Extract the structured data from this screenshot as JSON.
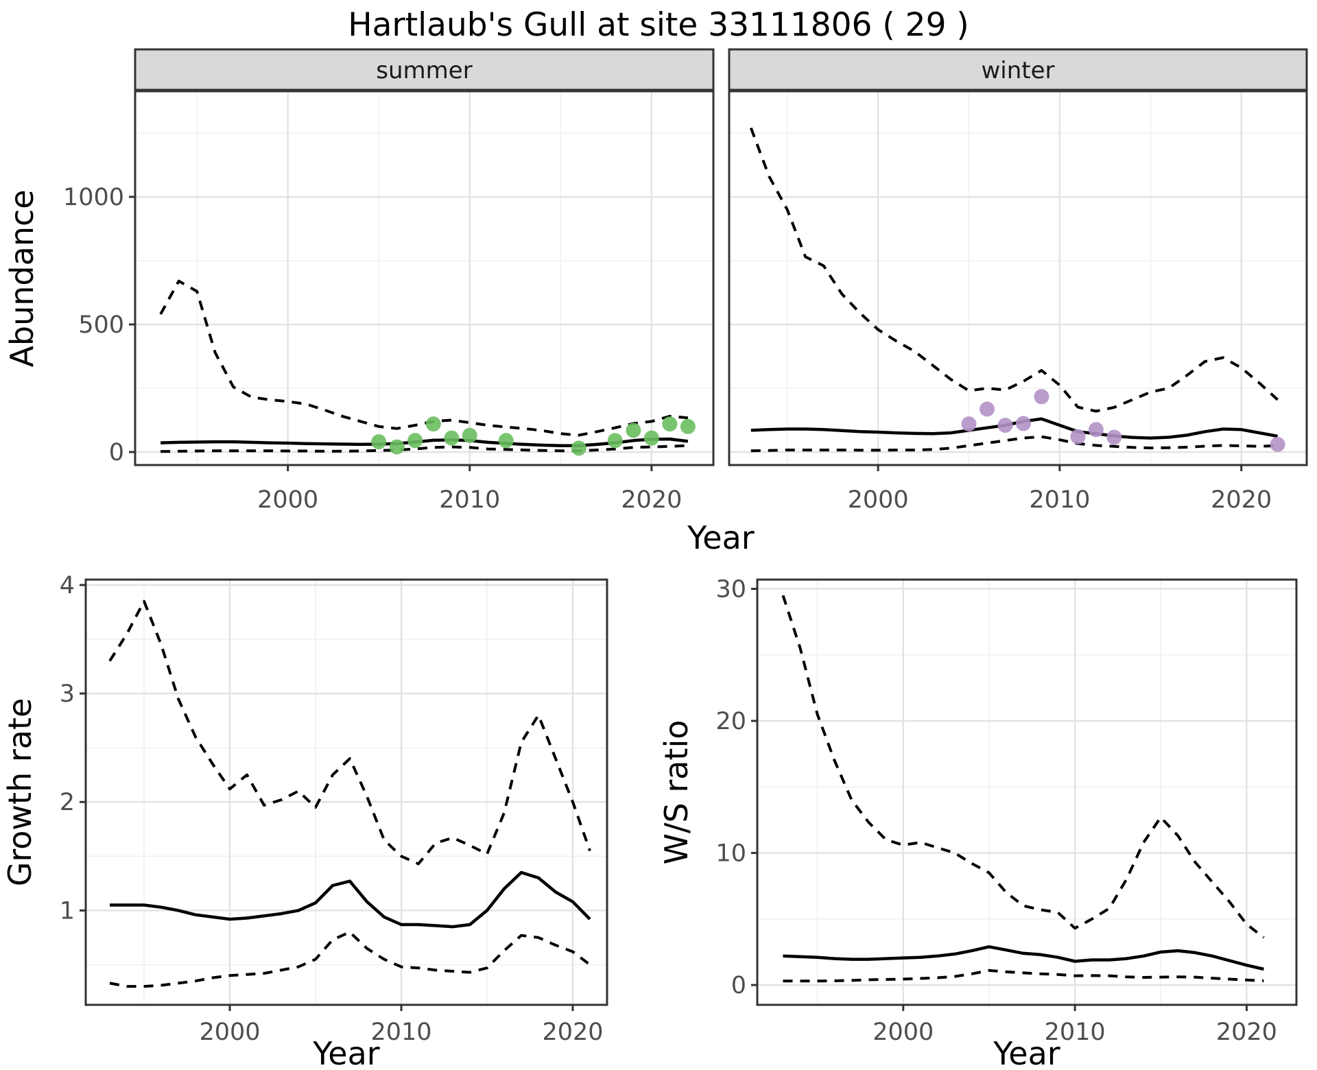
{
  "chart_data": {
    "type": "line",
    "title": "Hartlaub's Gull at site 33111806 ( 29 )",
    "layout_hints": {
      "grid": "on",
      "legend": "none",
      "facet_strips": [
        "summer",
        "winter"
      ],
      "line_styles": {
        "median": "solid black",
        "credible_interval": "dashed black"
      }
    },
    "styles": {
      "summer_point_color": "#6ABE5F",
      "winter_point_color": "#B292C7",
      "strip_fill": "#D9D9D9",
      "strip_border": "#333333",
      "panel_border": "#333333",
      "grid_major": "#E2E2E2",
      "grid_minor": "#F0F0F0",
      "tick_color": "#333333",
      "line_color": "#000000"
    },
    "panels": [
      {
        "key": "abundance_summer",
        "facet": "summer",
        "ylabel": "Abundance",
        "xlabel": "Year",
        "xlim": [
          1991.6,
          2023.4
        ],
        "ylim": [
          -51,
          1414
        ],
        "xticks": [
          2000,
          2010,
          2020
        ],
        "xminor": [
          1995,
          2005,
          2015
        ],
        "yticks": [
          0,
          500,
          1000
        ],
        "yminor": [
          250,
          750,
          1250
        ],
        "x": [
          1993,
          1994,
          1995,
          1996,
          1997,
          1998,
          1999,
          2000,
          2001,
          2002,
          2003,
          2004,
          2005,
          2006,
          2007,
          2008,
          2009,
          2010,
          2011,
          2012,
          2013,
          2014,
          2015,
          2016,
          2017,
          2018,
          2019,
          2020,
          2021,
          2022
        ],
        "upper": [
          540,
          670,
          630,
          390,
          255,
          215,
          205,
          198,
          188,
          165,
          140,
          120,
          100,
          92,
          105,
          120,
          125,
          115,
          105,
          98,
          92,
          84,
          72,
          66,
          80,
          95,
          112,
          120,
          140,
          134
        ],
        "median": [
          36,
          38,
          39,
          40,
          40,
          38,
          36,
          35,
          33,
          32,
          31,
          30,
          31,
          33,
          39,
          46,
          48,
          45,
          38,
          34,
          30,
          27,
          25,
          25,
          30,
          36,
          45,
          50,
          51,
          42
        ],
        "lower": [
          2,
          3,
          4,
          5,
          5,
          5,
          5,
          4,
          4,
          3,
          3,
          4,
          6,
          8,
          12,
          18,
          20,
          18,
          12,
          10,
          8,
          6,
          5,
          5,
          8,
          12,
          18,
          20,
          22,
          25
        ],
        "points": [
          [
            2005,
            40
          ],
          [
            2006,
            20
          ],
          [
            2007,
            45
          ],
          [
            2008,
            110
          ],
          [
            2009,
            55
          ],
          [
            2010,
            65
          ],
          [
            2012,
            45
          ],
          [
            2016,
            15
          ],
          [
            2018,
            45
          ],
          [
            2019,
            85
          ],
          [
            2020,
            55
          ],
          [
            2021,
            110
          ],
          [
            2022,
            100
          ]
        ],
        "point_color": "#6ABE5F"
      },
      {
        "key": "abundance_winter",
        "facet": "winter",
        "ylabel": "Abundance",
        "xlabel": "Year",
        "xlim": [
          1991.8,
          2023.6
        ],
        "ylim": [
          -51,
          1414
        ],
        "xticks": [
          2000,
          2010,
          2020
        ],
        "xminor": [
          1995,
          2005,
          2015
        ],
        "yticks": [
          0,
          500,
          1000
        ],
        "yminor": [
          250,
          750,
          1250
        ],
        "x": [
          1993,
          1994,
          1995,
          1996,
          1997,
          1998,
          1999,
          2000,
          2001,
          2002,
          2003,
          2004,
          2005,
          2006,
          2007,
          2008,
          2009,
          2010,
          2011,
          2012,
          2013,
          2014,
          2015,
          2016,
          2017,
          2018,
          2019,
          2020,
          2021,
          2022
        ],
        "upper": [
          1270,
          1080,
          950,
          765,
          730,
          620,
          545,
          480,
          435,
          395,
          340,
          285,
          240,
          250,
          243,
          277,
          320,
          262,
          176,
          160,
          175,
          205,
          235,
          250,
          300,
          355,
          370,
          330,
          270,
          205
        ],
        "median": [
          85,
          88,
          90,
          90,
          88,
          84,
          80,
          78,
          75,
          73,
          72,
          75,
          85,
          95,
          105,
          120,
          130,
          105,
          80,
          72,
          63,
          57,
          55,
          58,
          66,
          80,
          90,
          88,
          75,
          62
        ],
        "lower": [
          5,
          6,
          8,
          8,
          8,
          8,
          7,
          7,
          8,
          8,
          10,
          15,
          25,
          35,
          45,
          55,
          60,
          48,
          33,
          26,
          22,
          18,
          16,
          17,
          19,
          23,
          26,
          24,
          22,
          25
        ],
        "points": [
          [
            2005,
            110
          ],
          [
            2006,
            168
          ],
          [
            2007,
            105
          ],
          [
            2008,
            112
          ],
          [
            2009,
            217
          ],
          [
            2011,
            60
          ],
          [
            2012,
            88
          ],
          [
            2013,
            58
          ],
          [
            2022,
            30
          ]
        ],
        "point_color": "#B292C7"
      },
      {
        "key": "growth",
        "facet": null,
        "ylabel": "Growth rate",
        "xlabel": "Year",
        "xlim": [
          1991.6,
          2022.0
        ],
        "ylim": [
          0.13,
          4.05
        ],
        "xticks": [
          2000,
          2010,
          2020
        ],
        "xminor": [
          1995,
          2005,
          2015
        ],
        "yticks": [
          1,
          2,
          3,
          4
        ],
        "yminor": [
          0.5,
          1.5,
          2.5,
          3.5
        ],
        "x": [
          1993,
          1994,
          1995,
          1996,
          1997,
          1998,
          1999,
          2000,
          2001,
          2002,
          2003,
          2004,
          2005,
          2006,
          2007,
          2008,
          2009,
          2010,
          2011,
          2012,
          2013,
          2014,
          2015,
          2016,
          2017,
          2018,
          2019,
          2020,
          2021
        ],
        "upper": [
          3.3,
          3.55,
          3.85,
          3.45,
          2.95,
          2.6,
          2.35,
          2.12,
          2.25,
          1.97,
          2.02,
          2.1,
          1.95,
          2.25,
          2.4,
          2.05,
          1.65,
          1.5,
          1.43,
          1.62,
          1.67,
          1.6,
          1.52,
          1.9,
          2.55,
          2.8,
          2.4,
          2.0,
          1.55
        ],
        "median": [
          1.05,
          1.05,
          1.05,
          1.03,
          1.0,
          0.96,
          0.94,
          0.92,
          0.93,
          0.95,
          0.97,
          1.0,
          1.07,
          1.23,
          1.27,
          1.08,
          0.94,
          0.87,
          0.87,
          0.86,
          0.85,
          0.87,
          1.0,
          1.2,
          1.35,
          1.3,
          1.17,
          1.08,
          0.92
        ],
        "lower": [
          0.33,
          0.3,
          0.3,
          0.31,
          0.33,
          0.35,
          0.38,
          0.4,
          0.41,
          0.42,
          0.45,
          0.48,
          0.55,
          0.73,
          0.8,
          0.65,
          0.55,
          0.48,
          0.47,
          0.45,
          0.44,
          0.43,
          0.47,
          0.63,
          0.77,
          0.75,
          0.68,
          0.62,
          0.5
        ],
        "points": [],
        "point_color": null
      },
      {
        "key": "ws_ratio",
        "facet": null,
        "ylabel": "W/S ratio",
        "xlabel": "Year",
        "xlim": [
          1991.5,
          2022.9
        ],
        "ylim": [
          -1.5,
          30.7
        ],
        "xticks": [
          2000,
          2010,
          2020
        ],
        "xminor": [
          1995,
          2005,
          2015
        ],
        "yticks": [
          0,
          10,
          20,
          30
        ],
        "yminor": [
          5,
          15,
          25
        ],
        "x": [
          1993,
          1994,
          1995,
          1996,
          1997,
          1998,
          1999,
          2000,
          2001,
          2002,
          2003,
          2004,
          2005,
          2006,
          2007,
          2008,
          2009,
          2010,
          2011,
          2012,
          2013,
          2014,
          2015,
          2016,
          2017,
          2018,
          2019,
          2020,
          2021
        ],
        "upper": [
          29.5,
          25.5,
          20.5,
          17,
          14,
          12.3,
          11,
          10.6,
          10.8,
          10.4,
          10,
          9.2,
          8.5,
          7,
          6,
          5.7,
          5.5,
          4.3,
          5,
          5.8,
          8,
          10.8,
          12.7,
          11.3,
          9.3,
          7.8,
          6.3,
          4.6,
          3.6
        ],
        "median": [
          2.2,
          2.15,
          2.1,
          2.0,
          1.95,
          1.95,
          2.0,
          2.05,
          2.1,
          2.2,
          2.35,
          2.6,
          2.9,
          2.65,
          2.4,
          2.3,
          2.1,
          1.8,
          1.9,
          1.9,
          2.0,
          2.2,
          2.5,
          2.6,
          2.45,
          2.2,
          1.85,
          1.5,
          1.2
        ],
        "lower": [
          0.3,
          0.3,
          0.3,
          0.32,
          0.35,
          0.4,
          0.42,
          0.45,
          0.5,
          0.55,
          0.65,
          0.85,
          1.1,
          1.0,
          0.92,
          0.85,
          0.8,
          0.7,
          0.72,
          0.7,
          0.62,
          0.58,
          0.6,
          0.62,
          0.6,
          0.52,
          0.45,
          0.38,
          0.32
        ],
        "points": [],
        "point_color": null
      }
    ],
    "top_row_xlabel": "Year"
  }
}
